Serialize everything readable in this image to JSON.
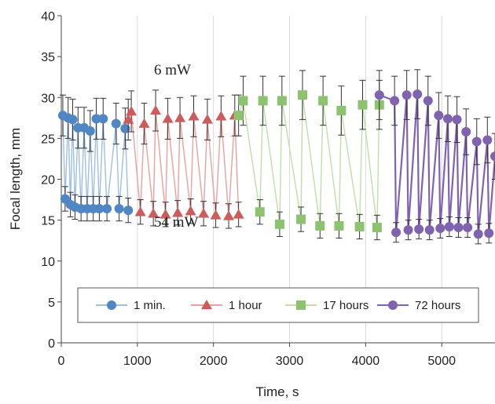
{
  "chart_data": {
    "type": "line",
    "xlabel": "Time, s",
    "ylabel": "Focal length, mm",
    "xlim": [
      0,
      5700
    ],
    "ylim": [
      0,
      40
    ],
    "x_ticks": [
      0,
      1000,
      2000,
      3000,
      4000,
      5000
    ],
    "y_ticks": [
      0,
      5,
      10,
      15,
      20,
      25,
      30,
      35,
      40
    ],
    "grid": "vertical",
    "legend_position": "bottom-center",
    "annotations": [
      "6 mW",
      "54 mW"
    ],
    "series": [
      {
        "name": "1 min.",
        "color": "#4f86c6",
        "line_color": "#9dbfe3",
        "marker": "circle",
        "x": [
          20,
          50,
          90,
          120,
          150,
          180,
          220,
          260,
          300,
          340,
          380,
          420,
          460,
          500,
          550,
          600,
          720,
          760,
          840,
          880
        ],
        "y": [
          27.8,
          17.6,
          27.5,
          16.9,
          27.3,
          16.6,
          26.3,
          16.4,
          26.3,
          16.4,
          25.9,
          16.4,
          27.4,
          16.4,
          27.4,
          16.4,
          26.8,
          16.4,
          26.2,
          16.2
        ],
        "error": [
          2.5,
          1.5,
          2.5,
          1.5,
          2.5,
          1.5,
          2.5,
          1.5,
          2.5,
          1.5,
          2.5,
          1.5,
          2.5,
          1.5,
          2.5,
          1.5,
          2.5,
          1.5,
          2.5,
          1.5
        ]
      },
      {
        "name": "1 hour",
        "color": "#cf5a5a",
        "line_color": "#e9a0a0",
        "marker": "triangle",
        "x": [
          880,
          920,
          1040,
          1090,
          1210,
          1240,
          1370,
          1400,
          1530,
          1560,
          1700,
          1740,
          1870,
          1920,
          2030,
          2100,
          2200,
          2280,
          2330
        ],
        "y": [
          27.3,
          28.3,
          16.0,
          26.8,
          15.8,
          28.4,
          15.7,
          27.4,
          15.9,
          27.5,
          16.1,
          27.7,
          15.8,
          27.3,
          15.6,
          27.7,
          15.5,
          27.8,
          15.7
        ],
        "error": [
          2.5,
          2.5,
          1.5,
          2.5,
          1.5,
          2.5,
          1.5,
          2.5,
          1.5,
          2.5,
          1.5,
          2.5,
          1.5,
          2.5,
          1.5,
          2.5,
          1.5,
          2.5,
          1.5
        ]
      },
      {
        "name": "17 hours",
        "color": "#8dc26f",
        "line_color": "#bfdea8",
        "marker": "square",
        "x": [
          2330,
          2390,
          2610,
          2650,
          2870,
          2900,
          3150,
          3170,
          3400,
          3440,
          3650,
          3680,
          3920,
          3960,
          4150,
          4180
        ],
        "y": [
          27.8,
          29.6,
          16.0,
          29.6,
          14.5,
          29.6,
          15.1,
          30.3,
          14.3,
          29.6,
          14.3,
          28.4,
          14.2,
          29.1,
          14.1,
          29.1
        ],
        "error": [
          2.5,
          3.0,
          1.5,
          3.0,
          1.5,
          3.0,
          1.5,
          3.0,
          1.5,
          3.0,
          1.5,
          3.0,
          1.5,
          3.0,
          1.5,
          3.0
        ]
      },
      {
        "name": "72 hours",
        "color": "#7f63b1",
        "line_color": "#7f63b1",
        "marker": "circle",
        "x": [
          4180,
          4380,
          4400,
          4540,
          4560,
          4680,
          4700,
          4820,
          4840,
          4960,
          4980,
          5080,
          5100,
          5200,
          5220,
          5320,
          5340,
          5460,
          5480,
          5600,
          5620,
          5700
        ],
        "y": [
          30.3,
          29.6,
          13.5,
          30.3,
          13.8,
          30.4,
          13.9,
          29.6,
          13.8,
          27.8,
          14.0,
          27.4,
          14.2,
          27.3,
          14.1,
          25.8,
          14.1,
          24.6,
          13.3,
          24.8,
          13.4,
          22.8
        ],
        "error": [
          3.0,
          3.0,
          1.2,
          3.0,
          1.2,
          3.0,
          1.2,
          3.0,
          1.2,
          2.8,
          1.2,
          2.8,
          1.2,
          2.8,
          1.2,
          2.8,
          1.2,
          2.8,
          1.2,
          2.8,
          1.2,
          2.8
        ]
      }
    ]
  }
}
